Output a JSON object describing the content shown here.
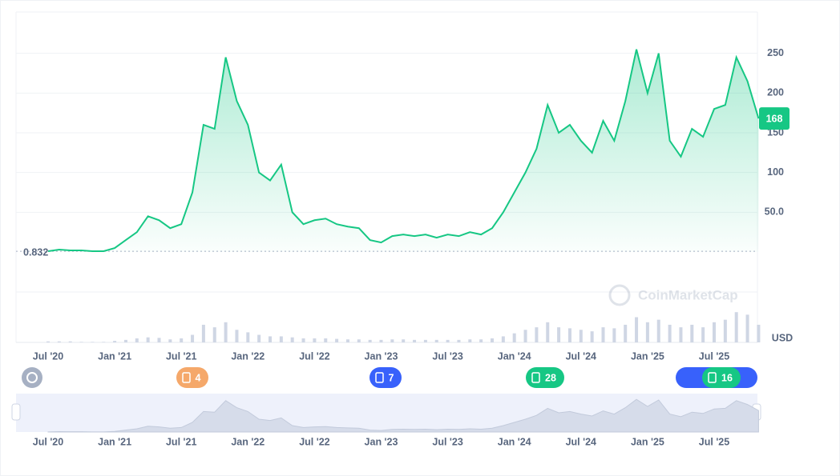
{
  "chart_data": {
    "type": "line",
    "categories": [
      "Jul '20",
      null,
      null,
      null,
      null,
      null,
      "Jan '21",
      null,
      null,
      null,
      null,
      null,
      "Jul '21",
      null,
      null,
      null,
      null,
      null,
      "Jan '22",
      null,
      null,
      null,
      null,
      null,
      "Jul '22",
      null,
      null,
      null,
      null,
      null,
      "Jan '23",
      null,
      null,
      null,
      null,
      null,
      "Jul '23",
      null,
      null,
      null,
      null,
      null,
      "Jan '24",
      null,
      null,
      null,
      null,
      null,
      "Jul '24",
      null,
      null,
      null,
      null,
      null,
      "Jan '25",
      null,
      null,
      null,
      null,
      null,
      "Jul '25",
      null,
      null,
      null,
      null
    ],
    "values": [
      1,
      3,
      2,
      2,
      1,
      1,
      5,
      15,
      25,
      45,
      40,
      30,
      35,
      75,
      160,
      155,
      245,
      190,
      160,
      100,
      90,
      110,
      50,
      35,
      40,
      42,
      35,
      32,
      30,
      15,
      12,
      20,
      22,
      20,
      22,
      18,
      22,
      20,
      25,
      22,
      30,
      50,
      75,
      100,
      130,
      185,
      150,
      160,
      140,
      125,
      165,
      140,
      190,
      255,
      200,
      250,
      140,
      120,
      155,
      145,
      180,
      185,
      245,
      215,
      168
    ],
    "volume": [
      2,
      2,
      2,
      1,
      1,
      1,
      3,
      5,
      8,
      10,
      9,
      6,
      8,
      15,
      35,
      30,
      40,
      25,
      20,
      15,
      12,
      12,
      10,
      8,
      8,
      8,
      7,
      6,
      6,
      5,
      5,
      6,
      6,
      5,
      5,
      5,
      5,
      5,
      6,
      6,
      8,
      12,
      18,
      25,
      30,
      40,
      30,
      28,
      25,
      22,
      30,
      28,
      35,
      50,
      40,
      45,
      35,
      30,
      35,
      30,
      40,
      45,
      60,
      55,
      35
    ],
    "volume_lim": [
      0,
      100
    ],
    "color": "#16c784",
    "ylim": [
      0,
      300
    ],
    "yticks": [
      {
        "value": 50,
        "label": "50.0"
      },
      100,
      150,
      200,
      250
    ],
    "grid": true,
    "start_price": 0.832,
    "current_price": 168,
    "currency": "USD",
    "watermark": "CoinMarketCap",
    "events": [
      {
        "count": 4,
        "color": "#f5a86a"
      },
      {
        "count": 7,
        "color": "#3861fb"
      },
      {
        "count": 28,
        "color": "#16c784"
      },
      {
        "count": 16,
        "color": "#16c784"
      }
    ]
  }
}
